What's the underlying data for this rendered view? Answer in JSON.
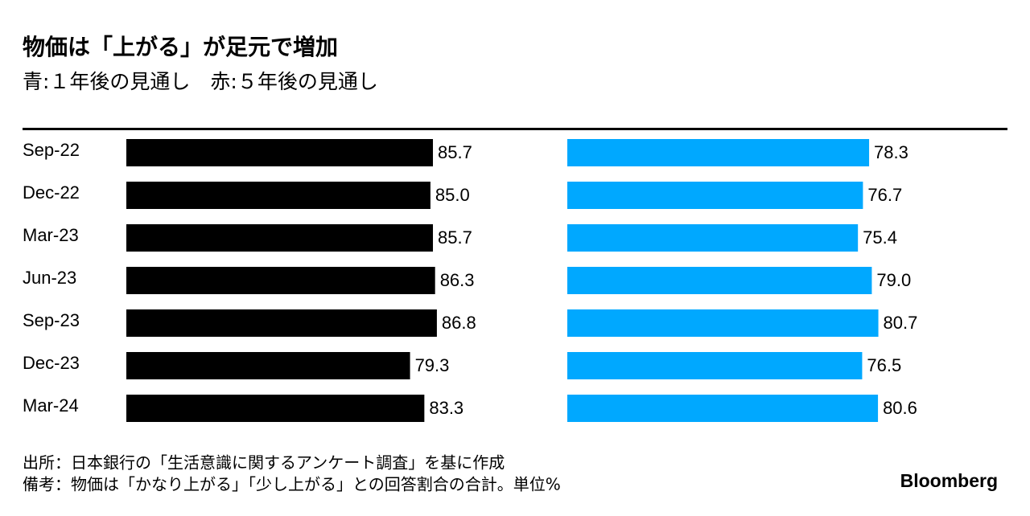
{
  "chart_data": {
    "type": "bar",
    "orientation": "horizontal",
    "title": "物価は「上がる」が足元で増加",
    "subtitle": "青:１年後の見通し　赤:５年後の見通し",
    "categories": [
      "Sep-22",
      "Dec-22",
      "Mar-23",
      "Jun-23",
      "Sep-23",
      "Dec-23",
      "Mar-24"
    ],
    "series": [
      {
        "color": "#000000",
        "values": [
          85.7,
          85.0,
          85.7,
          86.3,
          86.8,
          79.3,
          83.3
        ],
        "value_labels": [
          "85.7",
          "85.0",
          "85.7",
          "86.3",
          "86.8",
          "79.3",
          "83.3"
        ]
      },
      {
        "color": "#00a8ff",
        "values": [
          78.3,
          76.7,
          75.4,
          79.0,
          80.7,
          76.5,
          80.6
        ],
        "value_labels": [
          "78.3",
          "76.7",
          "75.4",
          "79.0",
          "80.7",
          "76.5",
          "80.6"
        ]
      }
    ],
    "notes": [
      "出所：日本銀行の「生活意識に関するアンケート調査」を基に作成",
      "備考：物価は「かなり上がる」「少し上がる」との回答割合の合計。単位%"
    ],
    "source": "Bloomberg"
  }
}
